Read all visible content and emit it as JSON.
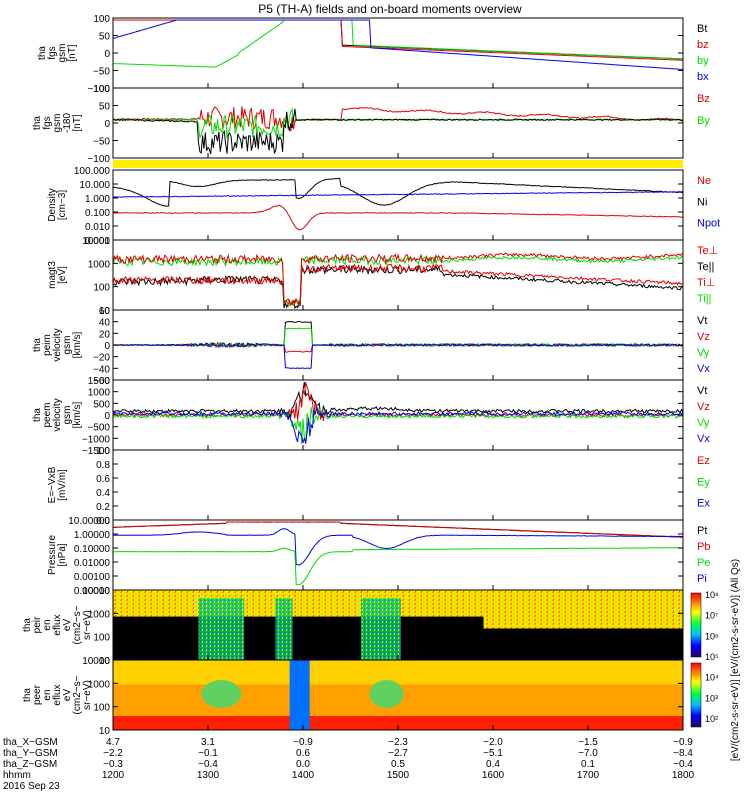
{
  "title": "P5 (TH-A) fields and on-board moments overview",
  "colors": {
    "black": "#000000",
    "red": "#e00000",
    "green": "#00dd00",
    "blue": "#0000ee",
    "yellow": "#ffee00"
  },
  "chart_data": [
    {
      "type": "line",
      "panel_id": "fgs-gsm",
      "ylabel": [
        "tha",
        "fgs",
        "gsm",
        "[nT]"
      ],
      "yticks": [
        "100",
        "50",
        "0",
        "−50",
        "−100"
      ],
      "ylim": [
        -100,
        100
      ],
      "legend": [
        "Bt",
        "bz",
        "by",
        "bx"
      ]
    },
    {
      "type": "line",
      "panel_id": "fgs-gse",
      "ylabel": [
        "tha",
        "fgs",
        "gsm",
        "-180",
        "[nT]"
      ],
      "yticks": [
        "100",
        "50",
        "0",
        "−50",
        "−100"
      ],
      "ylim": [
        -125,
        100
      ],
      "legend": [
        "Bz",
        "By"
      ]
    },
    {
      "type": "line",
      "panel_id": "density",
      "ylabel": [
        "Density",
        "[cm−3]"
      ],
      "yticks": [
        "100.000",
        "10.000",
        "1.000",
        "0.100",
        "0.010",
        "0.001"
      ],
      "scale": "log",
      "legend": [
        "Ne",
        "Ni",
        "Npot"
      ]
    },
    {
      "type": "line",
      "panel_id": "temperature",
      "ylabel": [
        "magt3",
        "[eV]"
      ],
      "yticks": [
        "10000",
        "1000",
        "100",
        "10"
      ],
      "scale": "log",
      "legend": [
        "Te⊥",
        "Te||",
        "Ti⊥",
        "Ti||"
      ]
    },
    {
      "type": "line",
      "panel_id": "peim-velocity",
      "ylabel": [
        "tha",
        "peim",
        "velocity",
        "gsm",
        "[km/s]"
      ],
      "yticks": [
        "60",
        "40",
        "20",
        "0",
        "−20",
        "−40",
        "−60"
      ],
      "ylim": [
        -60,
        60
      ],
      "legend": [
        "Vt",
        "Vz",
        "Vy",
        "Vx"
      ]
    },
    {
      "type": "line",
      "panel_id": "peem-velocity",
      "ylabel": [
        "tha",
        "peem",
        "velocity",
        "gsm",
        "[km/s]"
      ],
      "yticks": [
        "1500",
        "1000",
        "500",
        "0",
        "−500",
        "−1000",
        "−1500"
      ],
      "ylim": [
        -1500,
        1500
      ],
      "legend": [
        "Vt",
        "Vz",
        "Vy",
        "Vx"
      ]
    },
    {
      "type": "line",
      "panel_id": "efield",
      "ylabel": [
        "E=−VxB",
        "[mV/m]"
      ],
      "yticks": [
        "1.0",
        "0.8",
        "0.6",
        "0.4",
        "0.2",
        "0.0"
      ],
      "ylim": [
        0,
        1
      ],
      "legend": [
        "Ez",
        "Ey",
        "Ex"
      ]
    },
    {
      "type": "line",
      "panel_id": "pressure",
      "ylabel": [
        "Pressure",
        "[nPa]"
      ],
      "yticks": [
        "10.00000",
        "1.00000",
        "0.10000",
        "0.01000",
        "0.00100",
        "0.00010"
      ],
      "scale": "log",
      "legend": [
        "Pt",
        "Pb",
        "Pe",
        "Pi"
      ]
    },
    {
      "type": "heatmap",
      "panel_id": "peir-spec",
      "ylabel": [
        "tha",
        "peir",
        "en",
        "eflux",
        "eV",
        "(cm2−s−",
        "sr−eV)"
      ],
      "yticks": [
        "10000",
        "1000",
        "100",
        "10"
      ],
      "scale": "log"
    },
    {
      "type": "heatmap",
      "panel_id": "peer-spec",
      "ylabel": [
        "tha",
        "peer",
        "en",
        "eflux",
        "eV",
        "(cm2−s−",
        "sr−eV)"
      ],
      "yticks": [
        "10000",
        "1000",
        "100",
        "10"
      ],
      "scale": "log",
      "colorbar": {
        "ticks": [
          "10⁸",
          "10⁷",
          "10⁶",
          "10⁵",
          "10⁴",
          "10³",
          "10²"
        ],
        "label": "[eV/(cm2-s-sr-eV)] [eV/(cm2-s-sr-eV)] (All Qs)"
      }
    }
  ],
  "xaxis": {
    "rows": [
      {
        "label": "tha_X−GSM",
        "values": [
          "4.7",
          "3.1",
          "−0.9",
          "−2.3",
          "−2.0",
          "−1.5",
          "−0.9"
        ]
      },
      {
        "label": "tha_Y−GSM",
        "values": [
          "−2.2",
          "−0.1",
          "0.6",
          "−2.7",
          "−5.1",
          "−7.0",
          "−8.4"
        ]
      },
      {
        "label": "tha_Z−GSM",
        "values": [
          "−0.3",
          "−0.4",
          "0.0",
          "0.5",
          "0.4",
          "0.1",
          "−0.4"
        ]
      },
      {
        "label": "hhmm",
        "values": [
          "1200",
          "1300",
          "1400",
          "1500",
          "1600",
          "1700",
          "1800"
        ]
      }
    ],
    "date": "2016 Sep 23"
  }
}
